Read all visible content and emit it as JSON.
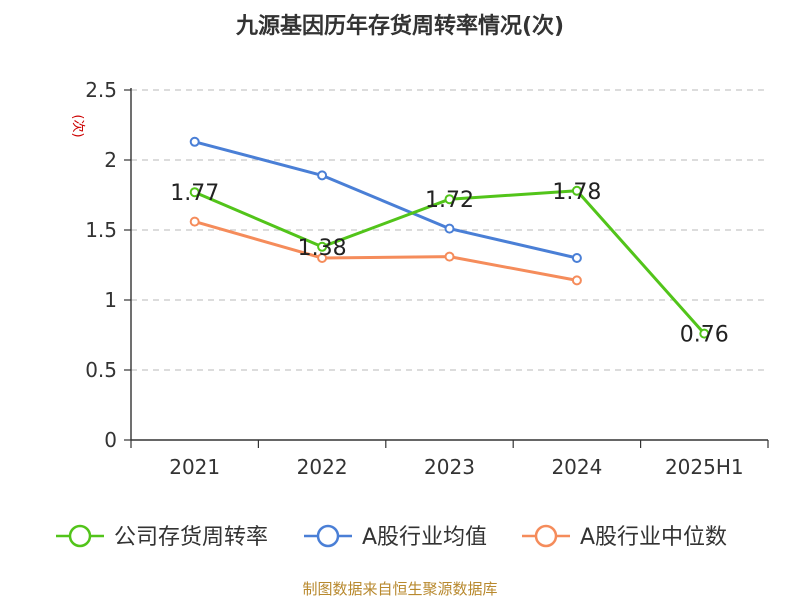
{
  "chart_data": {
    "type": "line",
    "title": "九源基因历年存货周转率情况(次)",
    "ylabel": "(次)",
    "xlabel": "",
    "categories": [
      "2021",
      "2022",
      "2023",
      "2024",
      "2025H1"
    ],
    "ylim": [
      0,
      2.5
    ],
    "yticks": [
      0,
      0.5,
      1,
      1.5,
      2,
      2.5
    ],
    "ytick_labels": [
      "0",
      "0.5",
      "1",
      "1.5",
      "2",
      "2.5"
    ],
    "grid": true,
    "legend_position": "bottom",
    "series": [
      {
        "name": "公司存货周转率",
        "color": "#52c41a",
        "values": [
          1.77,
          1.38,
          1.72,
          1.78,
          0.76
        ],
        "labels": [
          "1.77",
          "1.38",
          "1.72",
          "1.78",
          "0.76"
        ]
      },
      {
        "name": "A股行业均值",
        "color": "#4a7fd6",
        "values": [
          2.13,
          1.89,
          1.51,
          1.3,
          null
        ]
      },
      {
        "name": "A股行业中位数",
        "color": "#f58c5b",
        "values": [
          1.56,
          1.3,
          1.31,
          1.14,
          null
        ]
      }
    ]
  },
  "footer": {
    "source": "制图数据来自恒生聚源数据库"
  }
}
